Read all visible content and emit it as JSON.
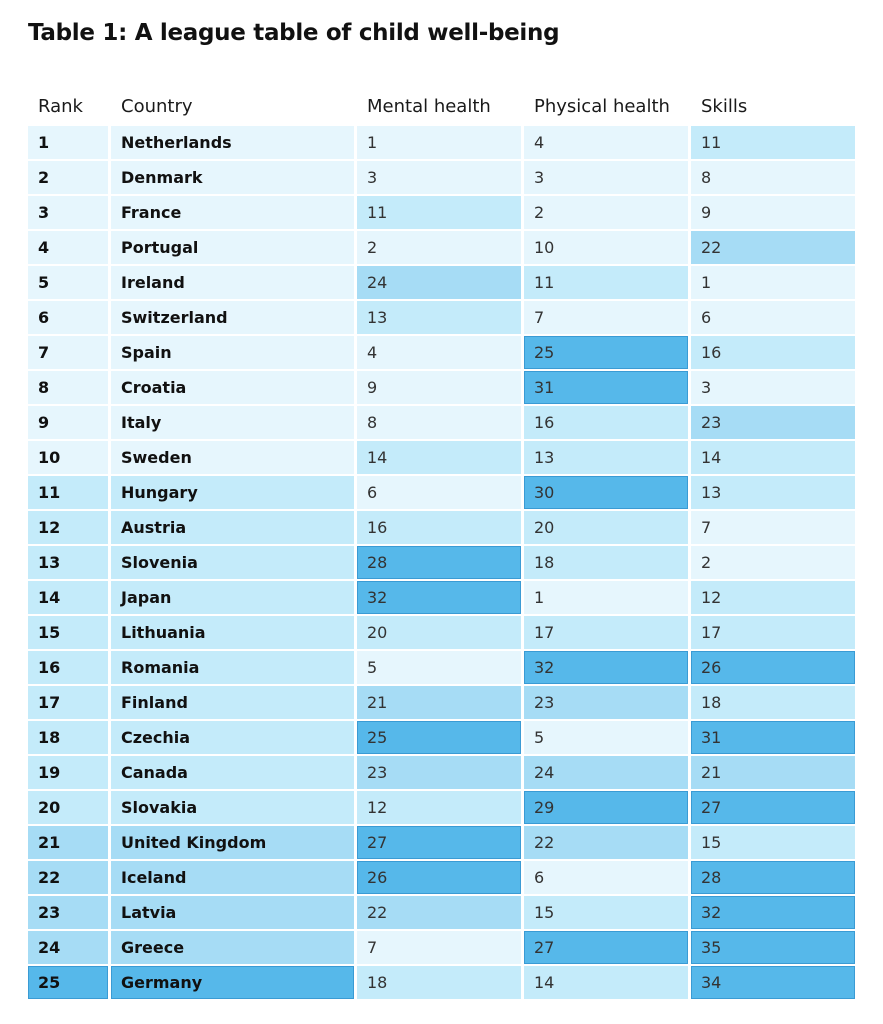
{
  "title": "Table 1: A league table of child well-being",
  "columns": {
    "rank": "Rank",
    "country": "Country",
    "mental": "Mental health",
    "physical": "Physical health",
    "skills": "Skills"
  },
  "colors": {
    "tier0": "#e6f6fd",
    "tier1": "#c4ebfa",
    "tier2": "#a6dcf5",
    "tier3": "#56b8ea"
  },
  "rows": [
    {
      "rank": "1",
      "country": "Netherlands",
      "mental": "1",
      "physical": "4",
      "skills": "11"
    },
    {
      "rank": "2",
      "country": "Denmark",
      "mental": "3",
      "physical": "3",
      "skills": "8"
    },
    {
      "rank": "3",
      "country": "France",
      "mental": "11",
      "physical": "2",
      "skills": "9"
    },
    {
      "rank": "4",
      "country": "Portugal",
      "mental": "2",
      "physical": "10",
      "skills": "22"
    },
    {
      "rank": "5",
      "country": "Ireland",
      "mental": "24",
      "physical": "11",
      "skills": "1"
    },
    {
      "rank": "6",
      "country": "Switzerland",
      "mental": "13",
      "physical": "7",
      "skills": "6"
    },
    {
      "rank": "7",
      "country": "Spain",
      "mental": "4",
      "physical": "25",
      "skills": "16"
    },
    {
      "rank": "8",
      "country": "Croatia",
      "mental": "9",
      "physical": "31",
      "skills": "3"
    },
    {
      "rank": "9",
      "country": "Italy",
      "mental": "8",
      "physical": "16",
      "skills": "23"
    },
    {
      "rank": "10",
      "country": "Sweden",
      "mental": "14",
      "physical": "13",
      "skills": "14"
    },
    {
      "rank": "11",
      "country": "Hungary",
      "mental": "6",
      "physical": "30",
      "skills": "13"
    },
    {
      "rank": "12",
      "country": "Austria",
      "mental": "16",
      "physical": "20",
      "skills": "7"
    },
    {
      "rank": "13",
      "country": "Slovenia",
      "mental": "28",
      "physical": "18",
      "skills": "2"
    },
    {
      "rank": "14",
      "country": "Japan",
      "mental": "32",
      "physical": "1",
      "skills": "12"
    },
    {
      "rank": "15",
      "country": "Lithuania",
      "mental": "20",
      "physical": "17",
      "skills": "17"
    },
    {
      "rank": "16",
      "country": "Romania",
      "mental": "5",
      "physical": "32",
      "skills": "26"
    },
    {
      "rank": "17",
      "country": "Finland",
      "mental": "21",
      "physical": "23",
      "skills": "18"
    },
    {
      "rank": "18",
      "country": "Czechia",
      "mental": "25",
      "physical": "5",
      "skills": "31"
    },
    {
      "rank": "19",
      "country": "Canada",
      "mental": "23",
      "physical": "24",
      "skills": "21"
    },
    {
      "rank": "20",
      "country": "Slovakia",
      "mental": "12",
      "physical": "29",
      "skills": "27"
    },
    {
      "rank": "21",
      "country": "United Kingdom",
      "mental": "27",
      "physical": "22",
      "skills": "15"
    },
    {
      "rank": "22",
      "country": "Iceland",
      "mental": "26",
      "physical": "6",
      "skills": "28"
    },
    {
      "rank": "23",
      "country": "Latvia",
      "mental": "22",
      "physical": "15",
      "skills": "32"
    },
    {
      "rank": "24",
      "country": "Greece",
      "mental": "7",
      "physical": "27",
      "skills": "35"
    },
    {
      "rank": "25",
      "country": "Germany",
      "mental": "18",
      "physical": "14",
      "skills": "34"
    }
  ]
}
